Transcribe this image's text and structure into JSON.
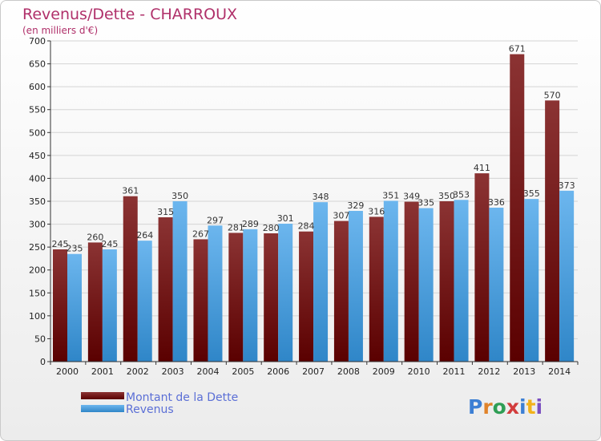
{
  "chart_data": {
    "type": "bar",
    "title": "Revenus/Dette - CHARROUX",
    "subtitle": "(en milliers d'€)",
    "categories": [
      "2000",
      "2001",
      "2002",
      "2003",
      "2004",
      "2005",
      "2006",
      "2007",
      "2008",
      "2009",
      "2010",
      "2011",
      "2012",
      "2013",
      "2014"
    ],
    "series": [
      {
        "name": "Montant de la Dette",
        "values": [
          245,
          260,
          361,
          315,
          267,
          281,
          280,
          284,
          307,
          316,
          349,
          350,
          411,
          671,
          570
        ]
      },
      {
        "name": "Revenus",
        "values": [
          235,
          245,
          264,
          350,
          297,
          289,
          301,
          348,
          329,
          351,
          335,
          353,
          336,
          355,
          373
        ]
      }
    ],
    "ylim": [
      0,
      700
    ],
    "yticks": [
      0,
      50,
      100,
      150,
      200,
      250,
      300,
      350,
      400,
      450,
      500,
      550,
      600,
      650,
      700
    ],
    "grid": true,
    "legend_position": "bottom-left"
  },
  "colors": {
    "dette_top": "#8b3333",
    "dette_bottom": "#5a0000",
    "revenus_top": "#6cb6ee",
    "revenus_bottom": "#2f86c8",
    "title": "#b0306a",
    "legend_text": "#5b6fd6"
  },
  "branding": {
    "logo_text": "Proxiti"
  }
}
